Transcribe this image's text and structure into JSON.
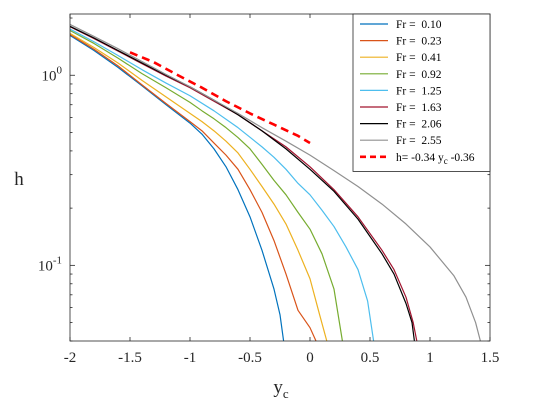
{
  "chart_data": {
    "type": "line",
    "title": "",
    "xlabel": "y",
    "xlabel_subscript": "c",
    "ylabel": "h",
    "xlim": [
      -2,
      1.5
    ],
    "ylim": [
      0.04,
      2.1
    ],
    "yscale": "log",
    "grid": false,
    "legend_position": "top-right",
    "x_ticks": [
      -2,
      -1.5,
      -1,
      -0.5,
      0,
      0.5,
      1,
      1.5
    ],
    "x_tick_labels": [
      "-2",
      "-1.5",
      "-1",
      "-0.5",
      "0",
      "0.5",
      "1",
      "1.5"
    ],
    "y_ticks": [
      {
        "value": 1,
        "base": "10",
        "exp": "0"
      },
      {
        "value": 0.1,
        "base": "10",
        "exp": "-1"
      }
    ],
    "series": [
      {
        "name": "Fr =  0.10",
        "color": "#0072bd",
        "style": "solid",
        "points": [
          [
            -2,
            1.62
          ],
          [
            -1.8,
            1.35
          ],
          [
            -1.6,
            1.1
          ],
          [
            -1.4,
            0.88
          ],
          [
            -1.2,
            0.7
          ],
          [
            -1.0,
            0.56
          ],
          [
            -0.9,
            0.49
          ],
          [
            -0.8,
            0.41
          ],
          [
            -0.7,
            0.33
          ],
          [
            -0.6,
            0.25
          ],
          [
            -0.5,
            0.18
          ],
          [
            -0.4,
            0.12
          ],
          [
            -0.3,
            0.075
          ],
          [
            -0.25,
            0.055
          ],
          [
            -0.22,
            0.04
          ]
        ]
      },
      {
        "name": "Fr =  0.23",
        "color": "#d95319",
        "style": "solid",
        "points": [
          [
            -2,
            1.64
          ],
          [
            -1.8,
            1.37
          ],
          [
            -1.6,
            1.12
          ],
          [
            -1.4,
            0.89
          ],
          [
            -1.2,
            0.71
          ],
          [
            -1.0,
            0.57
          ],
          [
            -0.9,
            0.51
          ],
          [
            -0.8,
            0.44
          ],
          [
            -0.7,
            0.38
          ],
          [
            -0.6,
            0.32
          ],
          [
            -0.5,
            0.25
          ],
          [
            -0.4,
            0.19
          ],
          [
            -0.3,
            0.135
          ],
          [
            -0.2,
            0.09
          ],
          [
            -0.1,
            0.058
          ],
          [
            0.0,
            0.047
          ],
          [
            0.05,
            0.04
          ]
        ]
      },
      {
        "name": "Fr =  0.41",
        "color": "#edb120",
        "style": "solid",
        "points": [
          [
            -2,
            1.66
          ],
          [
            -1.8,
            1.4
          ],
          [
            -1.6,
            1.16
          ],
          [
            -1.4,
            0.94
          ],
          [
            -1.2,
            0.77
          ],
          [
            -1.0,
            0.63
          ],
          [
            -0.9,
            0.57
          ],
          [
            -0.8,
            0.51
          ],
          [
            -0.7,
            0.45
          ],
          [
            -0.6,
            0.39
          ],
          [
            -0.5,
            0.32
          ],
          [
            -0.4,
            0.26
          ],
          [
            -0.3,
            0.21
          ],
          [
            -0.2,
            0.165
          ],
          [
            -0.1,
            0.12
          ],
          [
            0.0,
            0.085
          ],
          [
            0.08,
            0.055
          ],
          [
            0.14,
            0.04
          ]
        ]
      },
      {
        "name": "Fr =  0.92",
        "color": "#77ac30",
        "style": "solid",
        "points": [
          [
            -2,
            1.72
          ],
          [
            -1.8,
            1.47
          ],
          [
            -1.6,
            1.23
          ],
          [
            -1.4,
            1.02
          ],
          [
            -1.2,
            0.86
          ],
          [
            -1.0,
            0.72
          ],
          [
            -0.9,
            0.65
          ],
          [
            -0.8,
            0.59
          ],
          [
            -0.7,
            0.53
          ],
          [
            -0.6,
            0.47
          ],
          [
            -0.5,
            0.41
          ],
          [
            -0.4,
            0.34
          ],
          [
            -0.3,
            0.28
          ],
          [
            -0.2,
            0.235
          ],
          [
            -0.1,
            0.19
          ],
          [
            0.0,
            0.155
          ],
          [
            0.1,
            0.115
          ],
          [
            0.2,
            0.075
          ],
          [
            0.27,
            0.04
          ]
        ]
      },
      {
        "name": "Fr =  1.25",
        "color": "#4dbeee",
        "style": "solid",
        "points": [
          [
            -2,
            1.75
          ],
          [
            -1.8,
            1.5
          ],
          [
            -1.6,
            1.27
          ],
          [
            -1.4,
            1.07
          ],
          [
            -1.2,
            0.91
          ],
          [
            -1.0,
            0.78
          ],
          [
            -0.8,
            0.65
          ],
          [
            -0.6,
            0.53
          ],
          [
            -0.4,
            0.42
          ],
          [
            -0.3,
            0.37
          ],
          [
            -0.2,
            0.32
          ],
          [
            -0.1,
            0.27
          ],
          [
            0.0,
            0.235
          ],
          [
            0.1,
            0.195
          ],
          [
            0.2,
            0.16
          ],
          [
            0.3,
            0.125
          ],
          [
            0.4,
            0.095
          ],
          [
            0.48,
            0.065
          ],
          [
            0.53,
            0.04
          ]
        ]
      },
      {
        "name": "Fr =  1.63",
        "color": "#a2142f",
        "style": "solid",
        "points": [
          [
            -2,
            1.8
          ],
          [
            -1.8,
            1.56
          ],
          [
            -1.6,
            1.34
          ],
          [
            -1.4,
            1.15
          ],
          [
            -1.2,
            0.99
          ],
          [
            -1.0,
            0.86
          ],
          [
            -0.8,
            0.73
          ],
          [
            -0.6,
            0.62
          ],
          [
            -0.4,
            0.51
          ],
          [
            -0.2,
            0.42
          ],
          [
            0.0,
            0.33
          ],
          [
            0.2,
            0.25
          ],
          [
            0.4,
            0.18
          ],
          [
            0.6,
            0.12
          ],
          [
            0.7,
            0.095
          ],
          [
            0.8,
            0.068
          ],
          [
            0.86,
            0.05
          ],
          [
            0.89,
            0.04
          ]
        ]
      },
      {
        "name": "Fr =  2.06",
        "color": "#000000",
        "style": "solid",
        "points": [
          [
            -2,
            1.81
          ],
          [
            -1.8,
            1.57
          ],
          [
            -1.6,
            1.35
          ],
          [
            -1.4,
            1.16
          ],
          [
            -1.2,
            1.0
          ],
          [
            -1.0,
            0.87
          ],
          [
            -0.8,
            0.74
          ],
          [
            -0.6,
            0.62
          ],
          [
            -0.4,
            0.51
          ],
          [
            -0.2,
            0.41
          ],
          [
            0.0,
            0.32
          ],
          [
            0.2,
            0.245
          ],
          [
            0.4,
            0.175
          ],
          [
            0.6,
            0.115
          ],
          [
            0.7,
            0.09
          ],
          [
            0.8,
            0.063
          ],
          [
            0.85,
            0.05
          ],
          [
            0.87,
            0.04
          ]
        ]
      },
      {
        "name": "Fr =  2.55",
        "color": "#909090",
        "style": "solid",
        "points": [
          [
            -2,
            1.85
          ],
          [
            -1.8,
            1.6
          ],
          [
            -1.6,
            1.38
          ],
          [
            -1.4,
            1.18
          ],
          [
            -1.2,
            1.01
          ],
          [
            -1.0,
            0.87
          ],
          [
            -0.8,
            0.74
          ],
          [
            -0.6,
            0.63
          ],
          [
            -0.4,
            0.53
          ],
          [
            -0.2,
            0.45
          ],
          [
            0.0,
            0.38
          ],
          [
            0.2,
            0.315
          ],
          [
            0.4,
            0.26
          ],
          [
            0.6,
            0.21
          ],
          [
            0.8,
            0.165
          ],
          [
            1.0,
            0.125
          ],
          [
            1.2,
            0.088
          ],
          [
            1.3,
            0.068
          ],
          [
            1.38,
            0.05
          ],
          [
            1.42,
            0.04
          ]
        ]
      },
      {
        "name": "h= -0.34 y",
        "name_subscript": "c",
        "name_suffix": "-0.36",
        "color": "#ff0000",
        "style": "dashed",
        "points": [
          [
            -1.5,
            1.32
          ],
          [
            -1.3,
            1.17
          ],
          [
            -1.1,
            1.0
          ],
          [
            -0.9,
            0.86
          ],
          [
            -0.7,
            0.73
          ],
          [
            -0.5,
            0.63
          ],
          [
            -0.3,
            0.55
          ],
          [
            -0.1,
            0.48
          ],
          [
            0.0,
            0.44
          ]
        ]
      }
    ]
  }
}
